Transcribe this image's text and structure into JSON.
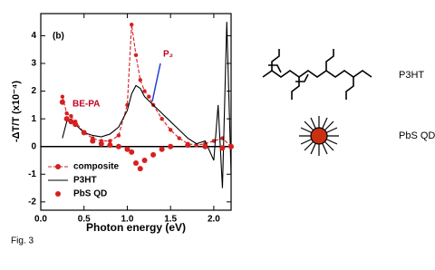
{
  "chart_data": {
    "type": "line",
    "xlabel": "Photon energy (eV)",
    "ylabel": "-ΔT/T (x10⁻⁴)",
    "annotations": [
      "(b)",
      "BE-PA",
      "P₂"
    ],
    "xlim": [
      0.0,
      2.2
    ],
    "ylim": [
      -2.3,
      4.8
    ],
    "xticks": [
      {
        "value": 0.0,
        "label": "0.0"
      },
      0.5,
      {
        "value": 1.0,
        "label": "1.0"
      },
      1.5,
      {
        "value": 2.0,
        "label": "2.0"
      }
    ],
    "yticks": [
      -2,
      -1,
      0,
      1,
      2,
      3,
      4
    ],
    "legend": "lower left",
    "series": [
      {
        "name": "composite",
        "color": "#d62020",
        "mode": "line+markers",
        "dashed": true,
        "x": [
          0.25,
          0.3,
          0.35,
          0.4,
          0.5,
          0.6,
          0.7,
          0.8,
          0.9,
          1.0,
          1.05,
          1.1,
          1.15,
          1.2,
          1.25,
          1.3,
          1.4,
          1.5,
          1.6,
          1.7,
          1.8,
          1.9,
          2.0,
          2.1,
          2.2
        ],
        "values": [
          1.8,
          1.2,
          1.1,
          0.9,
          0.5,
          0.3,
          0.2,
          0.2,
          0.4,
          1.5,
          4.4,
          3.3,
          2.4,
          2.0,
          1.8,
          1.5,
          1.0,
          0.6,
          0.3,
          0.1,
          0.05,
          0.1,
          0.2,
          0.3,
          0.0
        ]
      },
      {
        "name": "P3HT",
        "color": "#000000",
        "mode": "line",
        "dashed": false,
        "x": [
          0.25,
          0.3,
          0.35,
          0.4,
          0.5,
          0.6,
          0.7,
          0.8,
          0.9,
          1.0,
          1.05,
          1.1,
          1.15,
          1.2,
          1.3,
          1.4,
          1.5,
          1.6,
          1.7,
          1.8,
          1.9,
          2.0,
          2.05,
          2.1,
          2.15,
          2.2
        ],
        "values": [
          0.3,
          0.9,
          1.0,
          0.8,
          0.5,
          0.4,
          0.35,
          0.45,
          0.7,
          1.3,
          1.9,
          2.2,
          2.1,
          1.8,
          1.5,
          1.2,
          0.9,
          0.6,
          0.3,
          0.1,
          0.2,
          -0.5,
          1.5,
          -1.5,
          4.5,
          -1.0
        ]
      },
      {
        "name": "PbS QD",
        "color": "#d62020",
        "mode": "markers",
        "dashed": false,
        "x": [
          0.25,
          0.3,
          0.35,
          0.4,
          0.5,
          0.6,
          0.7,
          0.8,
          0.9,
          1.0,
          1.05,
          1.1,
          1.15,
          1.2,
          1.3,
          1.4,
          1.5,
          1.7,
          1.9,
          2.1,
          2.2
        ],
        "values": [
          1.6,
          1.0,
          0.9,
          0.8,
          0.5,
          0.2,
          0.1,
          0.05,
          0.0,
          -0.1,
          -0.2,
          -0.6,
          -0.8,
          -0.5,
          -0.3,
          -0.1,
          0.0,
          0.05,
          0.0,
          -0.05,
          0.0
        ]
      }
    ]
  },
  "caption": "Fig. 3",
  "schematic": {
    "labels": [
      "P3HT",
      "PbS QD"
    ]
  }
}
